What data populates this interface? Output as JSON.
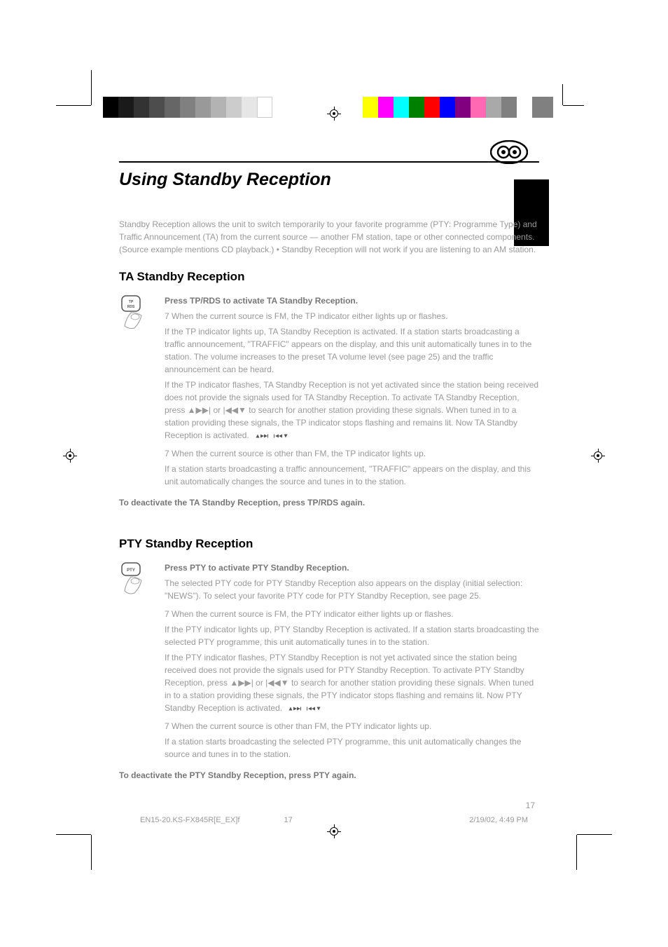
{
  "print_marks": {
    "gray_steps": [
      "#000000",
      "#1a1a1a",
      "#333333",
      "#4d4d4d",
      "#666666",
      "#808080",
      "#999999",
      "#b3b3b3",
      "#cccccc",
      "#e6e6e6",
      "#ffffff"
    ],
    "color_steps": [
      "#ffff00",
      "#ff00ff",
      "#00ffff",
      "#008000",
      "#ff0000",
      "#0000ff",
      "#800080",
      "#ff69b4",
      "#a9a9a9",
      "#808080"
    ]
  },
  "page": {
    "number": "17",
    "title": "Using Standby Reception",
    "intro": "Standby Reception allows the unit to switch temporarily to your favorite programme (PTY: Programme Type) and Traffic Announcement (TA) from the current source — another FM station, tape or other connected components. (Source example mentions CD playback.)\n• Standby Reception will not work if you are listening to an AM station.",
    "ta": {
      "title": "TA Standby Reception",
      "button_line": "Press TP/RDS to activate TA Standby Reception.",
      "button_label": "TP RDS",
      "case1_head": "7 When the current source is FM, the TP indicator either lights up or flashes.",
      "case1_lit": "If the TP indicator lights up, TA Standby Reception is activated.\nIf a station starts broadcasting a traffic announcement, \"TRAFFIC\" appears on the display, and this unit automatically tunes in to the station. The volume increases to the preset TA volume level (see page 25) and the traffic announcement can be heard.",
      "case1_flash": "If the TP indicator flashes, TA Standby Reception is not yet activated since the station being received does not provide the signals used for TA Standby Reception.\nTo activate TA Standby Reception, press ▲▶▶| or |◀◀▼ to search for another station providing these signals.\nWhen tuned in to a station providing these signals, the TP indicator stops flashing and remains lit. Now TA Standby Reception is activated.",
      "case2_head": "7 When the current source is other than FM, the TP indicator lights up.",
      "case2_body": "If a station starts broadcasting a traffic announcement, \"TRAFFIC\" appears on the display, and this unit automatically changes the source and tunes in to the station.",
      "deactivate": "To deactivate the TA Standby Reception, press TP/RDS again."
    },
    "pty": {
      "title": "PTY Standby Reception",
      "button_line": "Press PTY to activate PTY Standby Reception.",
      "button_label": "PTY",
      "after_press": "The selected PTY code for PTY Standby Reception also appears on the display (initial selection: \"NEWS\"). To select your favorite PTY code for PTY Standby Reception, see page 25.",
      "case1_head": "7 When the current source is FM, the PTY indicator either lights up or flashes.",
      "case1_lit": "If the PTY indicator lights up, PTY Standby Reception is activated.\nIf a station starts broadcasting the selected PTY programme, this unit automatically tunes in to the station.",
      "case1_flash": "If the PTY indicator flashes, PTY Standby Reception is not yet activated since the station being received does not provide the signals used for PTY Standby Reception.\nTo activate PTY Standby Reception, press ▲▶▶| or |◀◀▼ to search for another station providing these signals.\nWhen tuned in to a station providing these signals, the PTY indicator stops flashing and remains lit. Now PTY Standby Reception is activated.",
      "case2_head": "7 When the current source is other than FM, the PTY indicator lights up.",
      "case2_body": "If a station starts broadcasting the selected PTY programme, this unit automatically changes the source and tunes in to the station.",
      "deactivate": "To deactivate the PTY Standby Reception, press PTY again."
    },
    "footer_file": "EN15-20.KS-FX845R[E_EX]f",
    "footer_page": "17",
    "footer_timestamp": "2/19/02, 4:49 PM"
  },
  "colors": {
    "text_faint": "#999999",
    "text_black": "#000000"
  }
}
